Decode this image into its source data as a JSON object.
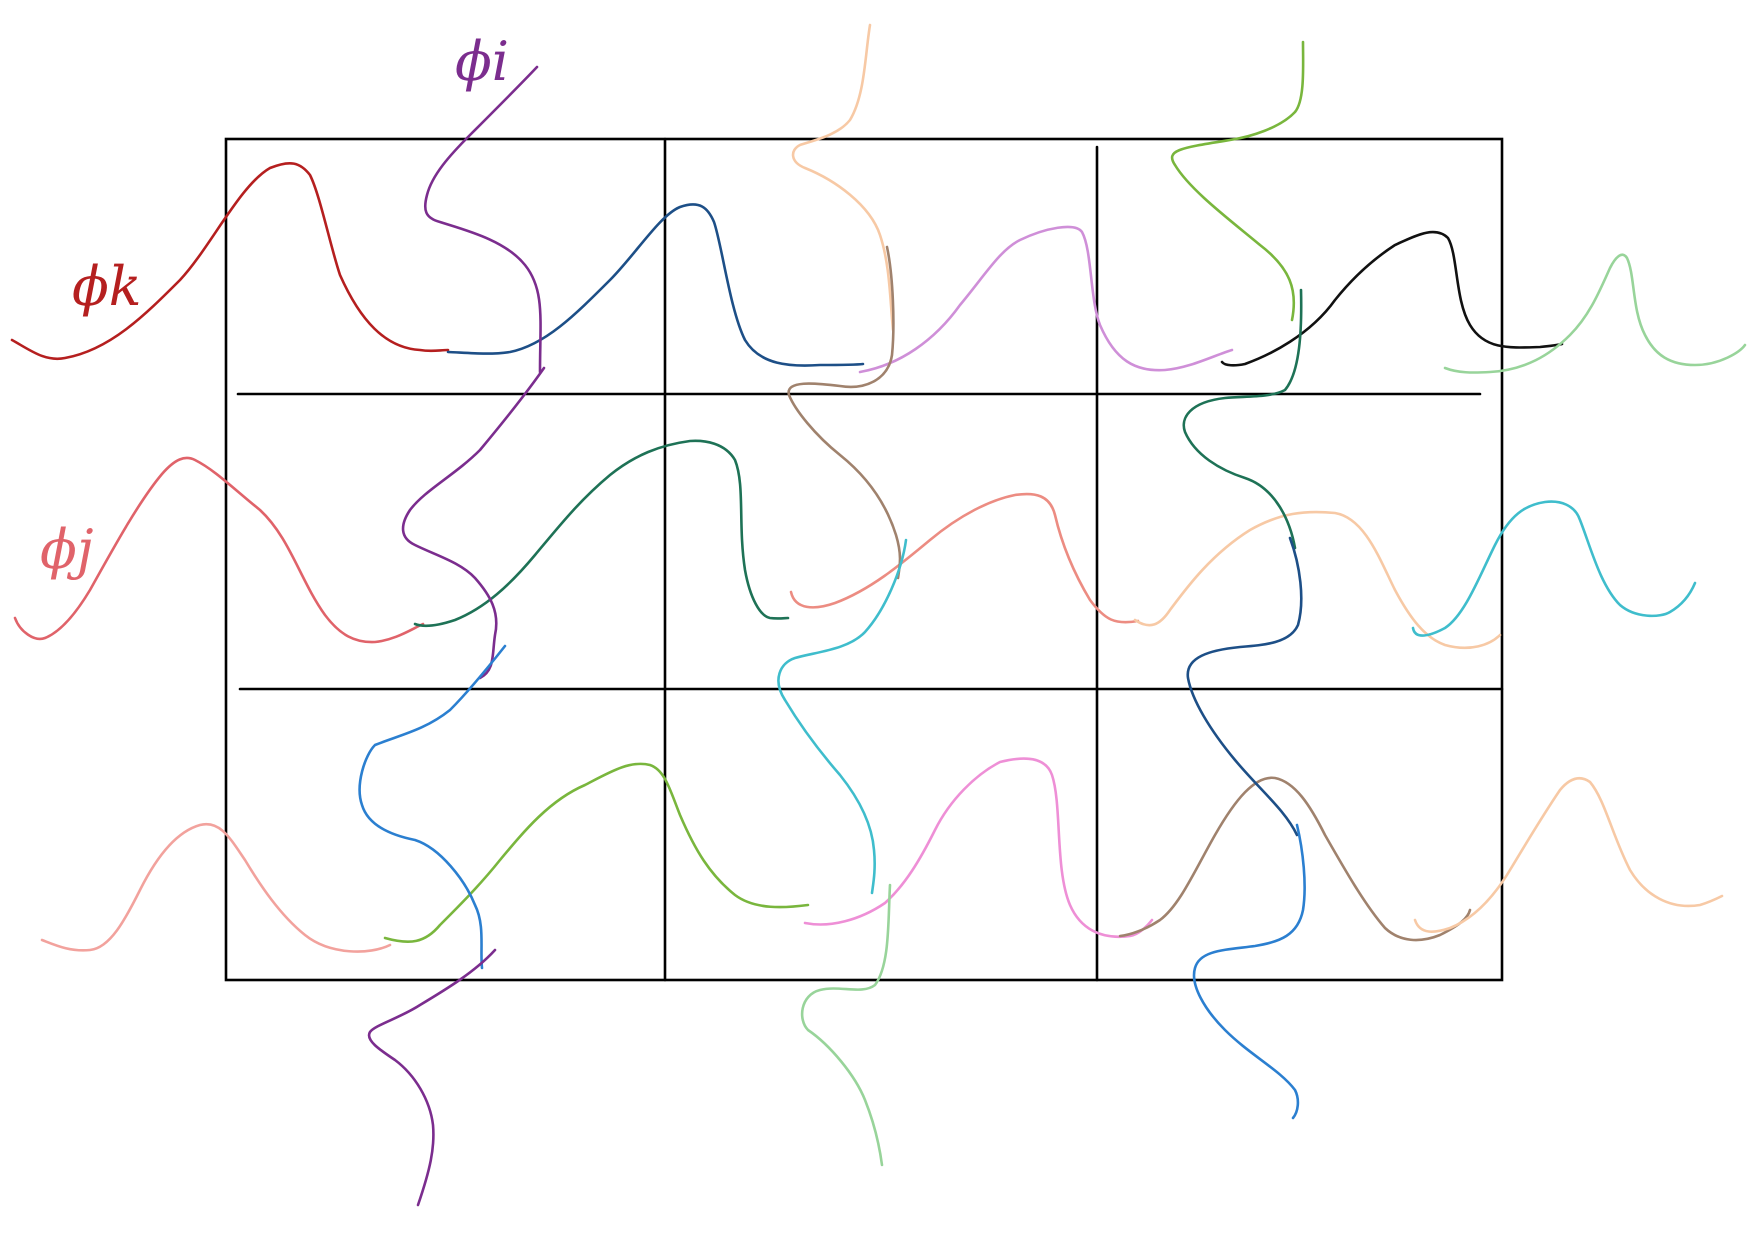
{
  "labels": {
    "phi_k": "ϕk",
    "phi_i": "ϕi",
    "phi_j": "ϕj"
  },
  "colors": {
    "grid": "#000000",
    "dark_red": "#b51f1f",
    "purple": "#7b2d8e",
    "coral": "#e0636a",
    "navy_blue": "#1d4f87",
    "peach": "#f7c9a5",
    "light_green": "#79b63d",
    "orchid": "#cf8fd8",
    "black": "#111111",
    "mint": "#98d49a",
    "taupe": "#a0826d",
    "teal_green": "#1e7256",
    "salmon": "#ec8c82",
    "cyan": "#3fbdcc",
    "sky_blue": "#2b7fd0",
    "pink": "#ee8fd6",
    "light_salmon": "#f2a29d"
  }
}
